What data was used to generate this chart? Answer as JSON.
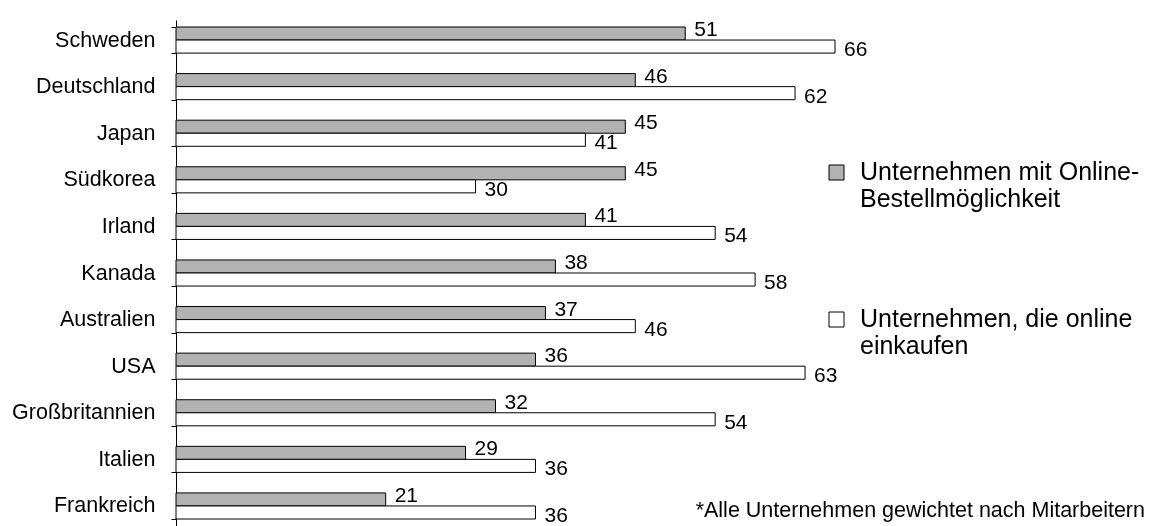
{
  "chart_data": {
    "type": "bar",
    "orientation": "horizontal",
    "categories": [
      "Schweden",
      "Deutschland",
      "Japan",
      "Südkorea",
      "Irland",
      "Kanada",
      "Australien",
      "USA",
      "Großbritannien",
      "Italien",
      "Frankreich"
    ],
    "series": [
      {
        "name": "Unternehmen mit Online-Bestellmöglichkeit",
        "color": "#b2b2b2",
        "values": [
          51,
          46,
          45,
          45,
          41,
          38,
          37,
          36,
          32,
          29,
          21
        ]
      },
      {
        "name": "Unternehmen, die online einkaufen",
        "color": "#ffffff",
        "values": [
          66,
          62,
          41,
          30,
          54,
          58,
          46,
          63,
          54,
          36,
          36
        ]
      }
    ],
    "data_labels": true,
    "legend": "right",
    "annotations": [
      "*Alle Unternehmen gewichtet nach Mitarbeitern"
    ]
  }
}
